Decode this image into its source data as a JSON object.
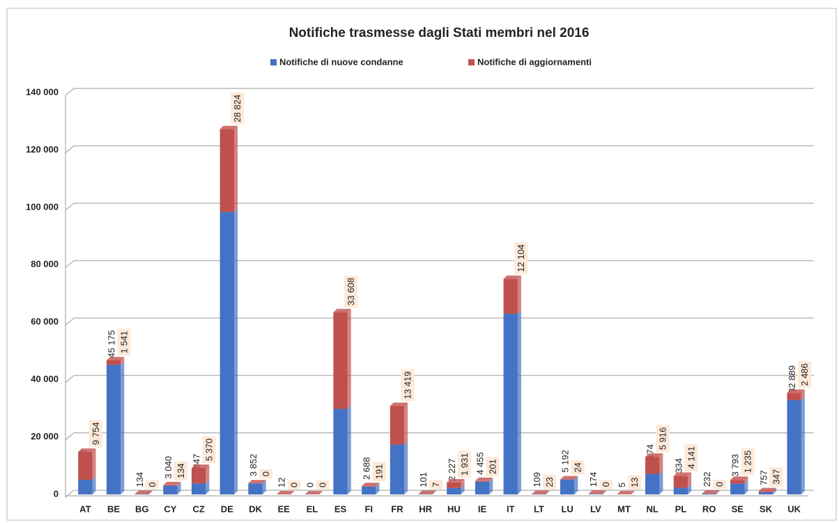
{
  "chart_data": {
    "type": "stacked_bar",
    "title": "Notifiche trasmesse dagli Stati membri nel 2016",
    "categories": [
      "AT",
      "BE",
      "BG",
      "CY",
      "CZ",
      "DE",
      "DK",
      "EE",
      "EL",
      "ES",
      "FI",
      "FR",
      "HR",
      "HU",
      "IE",
      "IT",
      "LT",
      "LU",
      "LV",
      "MT",
      "NL",
      "PL",
      "RO",
      "SE",
      "SK",
      "UK"
    ],
    "series": [
      {
        "name": "Notifiche di nuove condanne",
        "color": "#4472c4",
        "values": [
          5088,
          45175,
          134,
          3040,
          3847,
          98422,
          3852,
          12,
          0,
          29828,
          2688,
          17379,
          101,
          2227,
          4455,
          62971,
          109,
          5192,
          174,
          5,
          7174,
          2334,
          232,
          3793,
          757,
          32889
        ],
        "value_labels": [
          "5 088",
          "45 175",
          "134",
          "3 040",
          "3 847",
          "98 422",
          "3 852",
          "12",
          "0",
          "29 828",
          "2 688",
          "17 379",
          "101",
          "2 227",
          "4 455",
          "62 971",
          "109",
          "5 192",
          "174",
          "5",
          "7 174",
          "2 334",
          "232",
          "3 793",
          "757",
          "32 889"
        ]
      },
      {
        "name": "Notifiche di aggiornamenti",
        "color": "#c0504d",
        "values": [
          9754,
          1541,
          0,
          134,
          5370,
          28824,
          0,
          0,
          0,
          33608,
          191,
          13419,
          7,
          1931,
          201,
          12104,
          23,
          24,
          0,
          13,
          5916,
          4141,
          0,
          1235,
          347,
          2486
        ],
        "value_labels": [
          "9 754",
          "1 541",
          "0",
          "134",
          "5 370",
          "28 824",
          "0",
          "0",
          "0",
          "33 608",
          "191",
          "13 419",
          "7",
          "1 931",
          "201",
          "12 104",
          "23",
          "24",
          "0",
          "13",
          "5 916",
          "4 141",
          "0",
          "1 235",
          "347",
          "2 486"
        ]
      }
    ],
    "ylim": [
      0,
      140000
    ],
    "yticks": [
      0,
      {
        "value": 20000,
        "label": "20 000"
      },
      {
        "value": 40000,
        "label": "40 000"
      },
      {
        "value": 60000,
        "label": "60 000"
      },
      {
        "value": 80000,
        "label": "80 000"
      },
      {
        "value": 100000,
        "label": "100 000"
      },
      {
        "value": 120000,
        "label": "120 000"
      },
      {
        "value": 140000,
        "label": "140 000"
      }
    ],
    "grid": true,
    "legend": "top"
  }
}
